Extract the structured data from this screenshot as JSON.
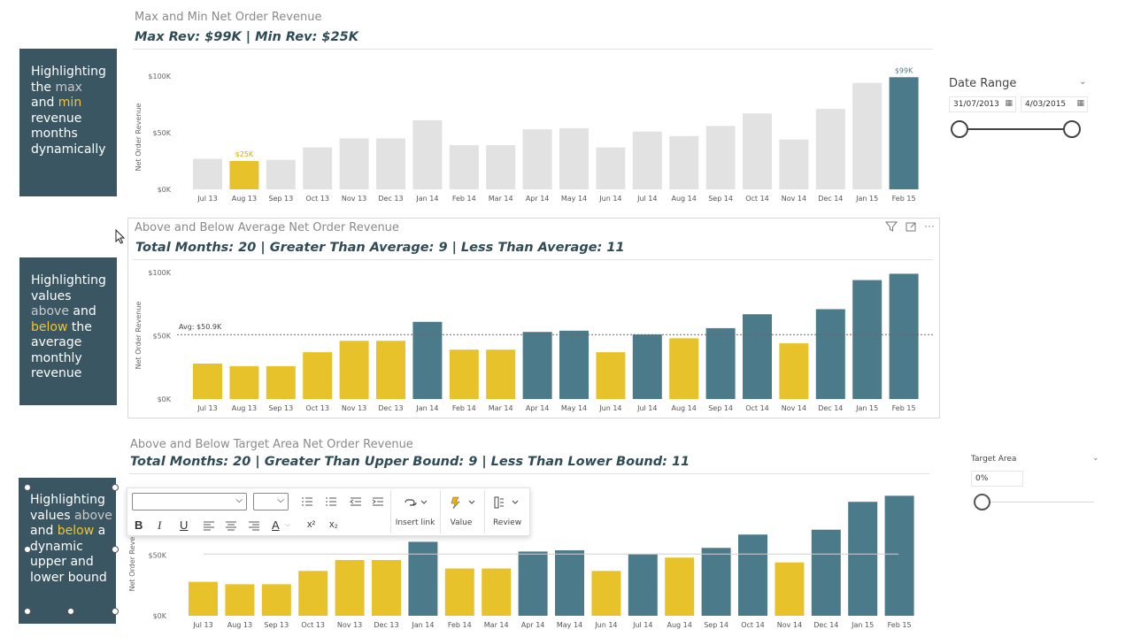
{
  "months": [
    "Jul 13",
    "Aug 13",
    "Sep 13",
    "Oct 13",
    "Nov 13",
    "Dec 13",
    "Jan 14",
    "Feb 14",
    "Mar 14",
    "Apr 14",
    "May 14",
    "Jun 14",
    "Jul 14",
    "Aug 14",
    "Sep 14",
    "Oct 14",
    "Nov 14",
    "Dec 14",
    "Jan 15",
    "Feb 15"
  ],
  "colors": {
    "teal": "#4b7a8a",
    "yellow": "#e8c22a",
    "grey": "#e2e2e2",
    "box": "#3a5663"
  },
  "info_boxes": {
    "box1": {
      "lines": [
        [
          "Highlighting"
        ],
        [
          "the ",
          "max"
        ],
        [
          "and ",
          "min"
        ],
        [
          "revenue"
        ],
        [
          "months"
        ],
        [
          "dynamically"
        ]
      ]
    },
    "box2": {
      "lines": [
        [
          "Highlighting"
        ],
        [
          "values"
        ],
        [
          "above",
          " and"
        ],
        [
          "below",
          " the"
        ],
        [
          "average"
        ],
        [
          "monthly"
        ],
        [
          "revenue"
        ]
      ]
    },
    "box3": {
      "lines": [
        [
          "Highlighting"
        ],
        [
          "values ",
          "above"
        ],
        [
          "and ",
          "below",
          " a"
        ],
        [
          "dynamic"
        ],
        [
          "upper and"
        ],
        [
          "lower bound"
        ]
      ]
    }
  },
  "chart1": {
    "title": "Max and Min Net Order Revenue",
    "subtitle": "Max Rev: $99K | Min Rev: $25K",
    "ylabel": "Net Order Revenue",
    "yticks": [
      "$100K",
      "$50K",
      "$0K"
    ],
    "max_label": "$99K",
    "min_label": "$25K"
  },
  "chart2": {
    "title": "Above and Below Average Net Order Revenue",
    "subtitle": "Total Months: 20 | Greater Than Average: 9 | Less Than Average: 11",
    "ylabel": "Net Order Revenue",
    "yticks": [
      "$100K",
      "$50K",
      "$0K"
    ],
    "avg_label": "Avg: $50.9K"
  },
  "chart3": {
    "title": "Above and Below Target Area Net Order Revenue",
    "subtitle": "Total Months: 20 | Greater Than Upper Bound: 9 | Less Than Lower Bound: 11",
    "ylabel": "Net Order Revenue",
    "yticks": [
      "$50K",
      "$0K"
    ]
  },
  "date_slicer": {
    "label": "Date Range",
    "start": "31/07/2013",
    "end": "4/03/2015"
  },
  "target_slicer": {
    "label": "Target Area",
    "value": "0%"
  },
  "toolbar": {
    "font_value": "",
    "size_value": "",
    "insert_link": "Insert link",
    "value": "Value",
    "review": "Review",
    "bold": "B",
    "italic": "I",
    "underline": "U",
    "font_color": "A",
    "superscript": "x²",
    "subscript": "x₂"
  },
  "more_options": "···",
  "chart_data": [
    {
      "type": "bar",
      "title": "Max and Min Net Order Revenue",
      "categories": [
        "Jul 13",
        "Aug 13",
        "Sep 13",
        "Oct 13",
        "Nov 13",
        "Dec 13",
        "Jan 14",
        "Feb 14",
        "Mar 14",
        "Apr 14",
        "May 14",
        "Jun 14",
        "Jul 14",
        "Aug 14",
        "Sep 14",
        "Oct 14",
        "Nov 14",
        "Dec 14",
        "Jan 15",
        "Feb 15"
      ],
      "values": [
        27,
        25,
        26,
        37,
        45,
        45,
        61,
        39,
        39,
        53,
        54,
        37,
        51,
        47,
        56,
        67,
        44,
        71,
        94,
        99
      ],
      "ylabel": "Net Order Revenue",
      "ylim": [
        0,
        100
      ],
      "highlight": {
        "max_index": 19,
        "min_index": 1
      }
    },
    {
      "type": "bar",
      "title": "Above and Below Average Net Order Revenue",
      "categories": [
        "Jul 13",
        "Aug 13",
        "Sep 13",
        "Oct 13",
        "Nov 13",
        "Dec 13",
        "Jan 14",
        "Feb 14",
        "Mar 14",
        "Apr 14",
        "May 14",
        "Jun 14",
        "Jul 14",
        "Aug 14",
        "Sep 14",
        "Oct 14",
        "Nov 14",
        "Dec 14",
        "Jan 15",
        "Feb 15"
      ],
      "values": [
        28,
        26,
        26,
        37,
        46,
        46,
        61,
        39,
        39,
        53,
        54,
        37,
        51,
        48,
        56,
        67,
        44,
        71,
        94,
        99
      ],
      "average": 50.9,
      "ylabel": "Net Order Revenue",
      "ylim": [
        0,
        100
      ]
    },
    {
      "type": "bar",
      "title": "Above and Below Target Area Net Order Revenue",
      "categories": [
        "Jul 13",
        "Aug 13",
        "Sep 13",
        "Oct 13",
        "Nov 13",
        "Dec 13",
        "Jan 14",
        "Feb 14",
        "Mar 14",
        "Apr 14",
        "May 14",
        "Jun 14",
        "Jul 14",
        "Aug 14",
        "Sep 14",
        "Oct 14",
        "Nov 14",
        "Dec 14",
        "Jan 15",
        "Feb 15"
      ],
      "values": [
        28,
        26,
        26,
        37,
        46,
        46,
        61,
        39,
        39,
        53,
        54,
        37,
        51,
        48,
        56,
        67,
        44,
        71,
        94,
        99
      ],
      "target": 50.9,
      "ylabel": "Net Order Revenue",
      "ylim": [
        0,
        100
      ]
    }
  ]
}
